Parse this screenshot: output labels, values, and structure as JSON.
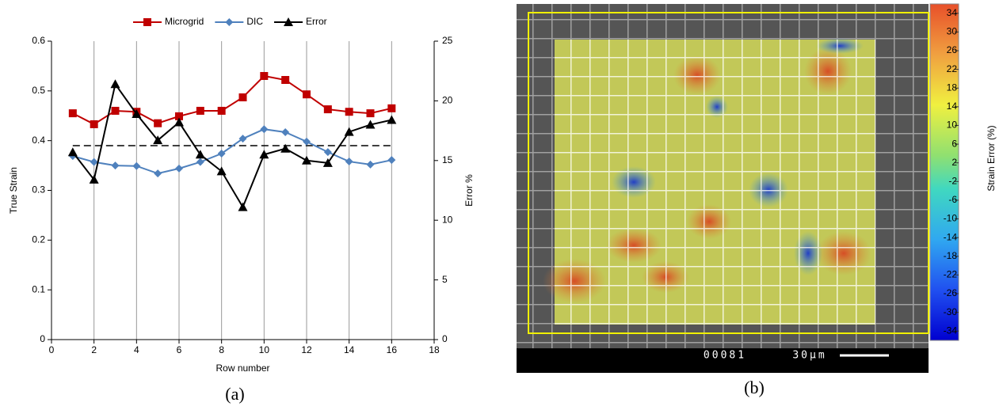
{
  "chart_data": [
    {
      "type": "line",
      "x": [
        1,
        2,
        3,
        4,
        5,
        6,
        7,
        8,
        9,
        10,
        11,
        12,
        13,
        14,
        15,
        16
      ],
      "series": [
        {
          "name": "Microgrid",
          "color": "#c00000",
          "marker": "square",
          "values": [
            0.455,
            0.433,
            0.46,
            0.458,
            0.435,
            0.449,
            0.46,
            0.46,
            0.487,
            0.53,
            0.522,
            0.493,
            0.463,
            0.458,
            0.455,
            0.465
          ]
        },
        {
          "name": "DIC",
          "color": "#4f81bd",
          "marker": "diamond",
          "values": [
            0.369,
            0.357,
            0.35,
            0.349,
            0.334,
            0.344,
            0.357,
            0.374,
            0.404,
            0.423,
            0.417,
            0.398,
            0.377,
            0.358,
            0.352,
            0.361
          ]
        },
        {
          "name": "Error",
          "color": "#000000",
          "marker": "triangle",
          "axis": "y2",
          "values": [
            15.7,
            13.4,
            21.4,
            18.9,
            16.7,
            18.2,
            15.5,
            14.1,
            11.1,
            15.5,
            16.0,
            15.0,
            14.8,
            17.4,
            18.0,
            18.4
          ]
        }
      ],
      "hline": 0.39,
      "xlim": [
        0,
        18
      ],
      "xticks": [
        0,
        2,
        4,
        6,
        8,
        10,
        12,
        14,
        16,
        18
      ],
      "ylim": [
        0,
        0.6
      ],
      "yticks": [
        0,
        0.1,
        0.2,
        0.3,
        0.4,
        0.5,
        0.6
      ],
      "y2lim": [
        0,
        25
      ],
      "y2ticks": [
        0,
        5,
        10,
        15,
        20,
        25
      ],
      "xlabel": "Row number",
      "ylabel": "True Strain",
      "y2label": "Error %",
      "grid": "x",
      "legend": "top",
      "caption": "(a)"
    },
    {
      "type": "heatmap",
      "colorbar": {
        "label": "Strain Error (%)",
        "lim": [
          -36,
          36
        ],
        "ticks": [
          34,
          30,
          26,
          22,
          18,
          14,
          10,
          6,
          2,
          -2,
          -6,
          -10,
          -14,
          -18,
          -22,
          -26,
          -30,
          -34
        ]
      },
      "annotations": [
        "00081",
        "30μm"
      ],
      "caption": "(b)"
    }
  ]
}
